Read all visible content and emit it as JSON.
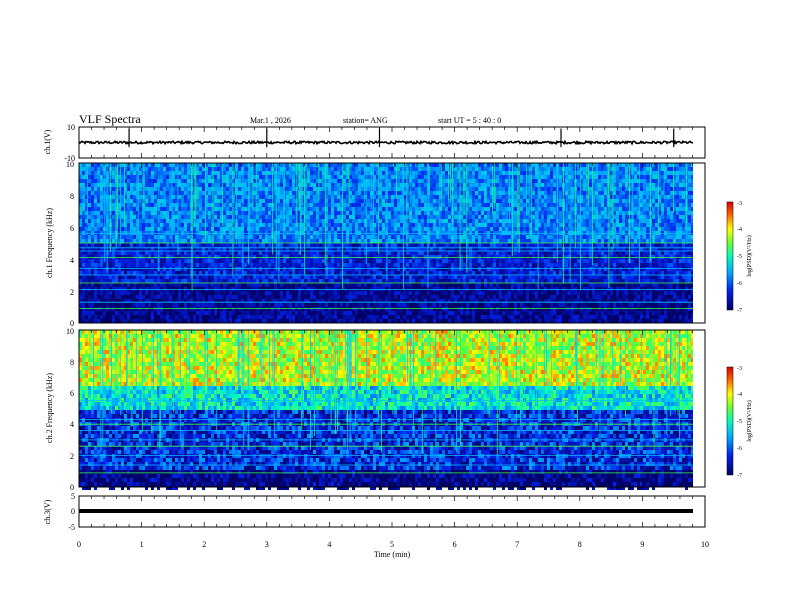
{
  "header": {
    "title": "VLF Spectra",
    "date": "Mar.1 , 2026",
    "station": "station= ANG",
    "start": "start UT = 5 : 40 : 0"
  },
  "colors": {
    "background_low": "#000066",
    "mid": "#0033ff",
    "cyan": "#00ccff",
    "green": "#33ff66",
    "yellow": "#ffee00",
    "red": "#dd0000",
    "trace": "#000000"
  },
  "chart_data": [
    {
      "type": "line",
      "panel": "ch1-waveform",
      "ylabel": "ch.1(V)",
      "ylim": [
        -10,
        10
      ],
      "yticks": [
        "10",
        "-10"
      ],
      "xlim": [
        0,
        10
      ],
      "series": [
        {
          "values_description_level": 0,
          "spikes_min": [
            0.8,
            3.0,
            4.8,
            7.7,
            9.5
          ]
        }
      ]
    },
    {
      "type": "heatmap",
      "panel": "ch1-spectrogram",
      "ylabel": "ch.1 Frequency (kHz)",
      "ylim": [
        0,
        10
      ],
      "yticks": [
        "0",
        "2",
        "4",
        "6",
        "8",
        "10"
      ],
      "xlim": [
        0,
        10
      ],
      "colorbar": {
        "label": "log(PSD)(V²/Hz)",
        "ticks": [
          "-3",
          "-4",
          "-5",
          "-6",
          "-7"
        ],
        "range": [
          -7,
          -3
        ]
      },
      "level_by_band_khz": [
        {
          "f": [
            0,
            2.5
          ],
          "level": -6.8
        },
        {
          "f": [
            2.5,
            5
          ],
          "level": -6.4
        },
        {
          "f": [
            5,
            10
          ],
          "level": -5.8
        }
      ],
      "line_tones_khz": [
        0.9,
        1.3,
        2.1,
        2.5,
        3.0,
        3.4,
        4.1,
        4.5,
        4.7,
        5.0,
        5.6
      ]
    },
    {
      "type": "heatmap",
      "panel": "ch2-spectrogram",
      "ylabel": "ch.2 Frequency (kHz)",
      "ylim": [
        0,
        10
      ],
      "yticks": [
        "0",
        "2",
        "4",
        "6",
        "8",
        "10"
      ],
      "xlim": [
        0,
        10
      ],
      "colorbar": {
        "label": "log(PSD)(V²/Hz)",
        "ticks": [
          "-3",
          "-4",
          "-5",
          "-6",
          "-7"
        ],
        "range": [
          -7,
          -3
        ]
      },
      "level_by_band_khz": [
        {
          "f": [
            0,
            1
          ],
          "level": -6.9
        },
        {
          "f": [
            1,
            5
          ],
          "level": -6.3
        },
        {
          "f": [
            5,
            6.5
          ],
          "level": -5.2
        },
        {
          "f": [
            6.5,
            10
          ],
          "level": -4.2
        }
      ],
      "line_tones_khz": [
        0.9,
        1.4,
        2.0,
        2.6,
        3.0,
        3.6,
        4.0,
        4.3,
        5.5
      ]
    },
    {
      "type": "line",
      "panel": "ch3-waveform",
      "ylabel": "ch.3(V)",
      "ylim": [
        -5,
        5
      ],
      "yticks": [
        "5",
        "0",
        "-5"
      ],
      "xlim": [
        0,
        10
      ],
      "series": [
        {
          "level": -0.5
        }
      ]
    }
  ],
  "xaxis": {
    "label": "Time (min)",
    "ticks": [
      "0",
      "1",
      "2",
      "3",
      "4",
      "5",
      "6",
      "7",
      "8",
      "9",
      "10"
    ]
  }
}
